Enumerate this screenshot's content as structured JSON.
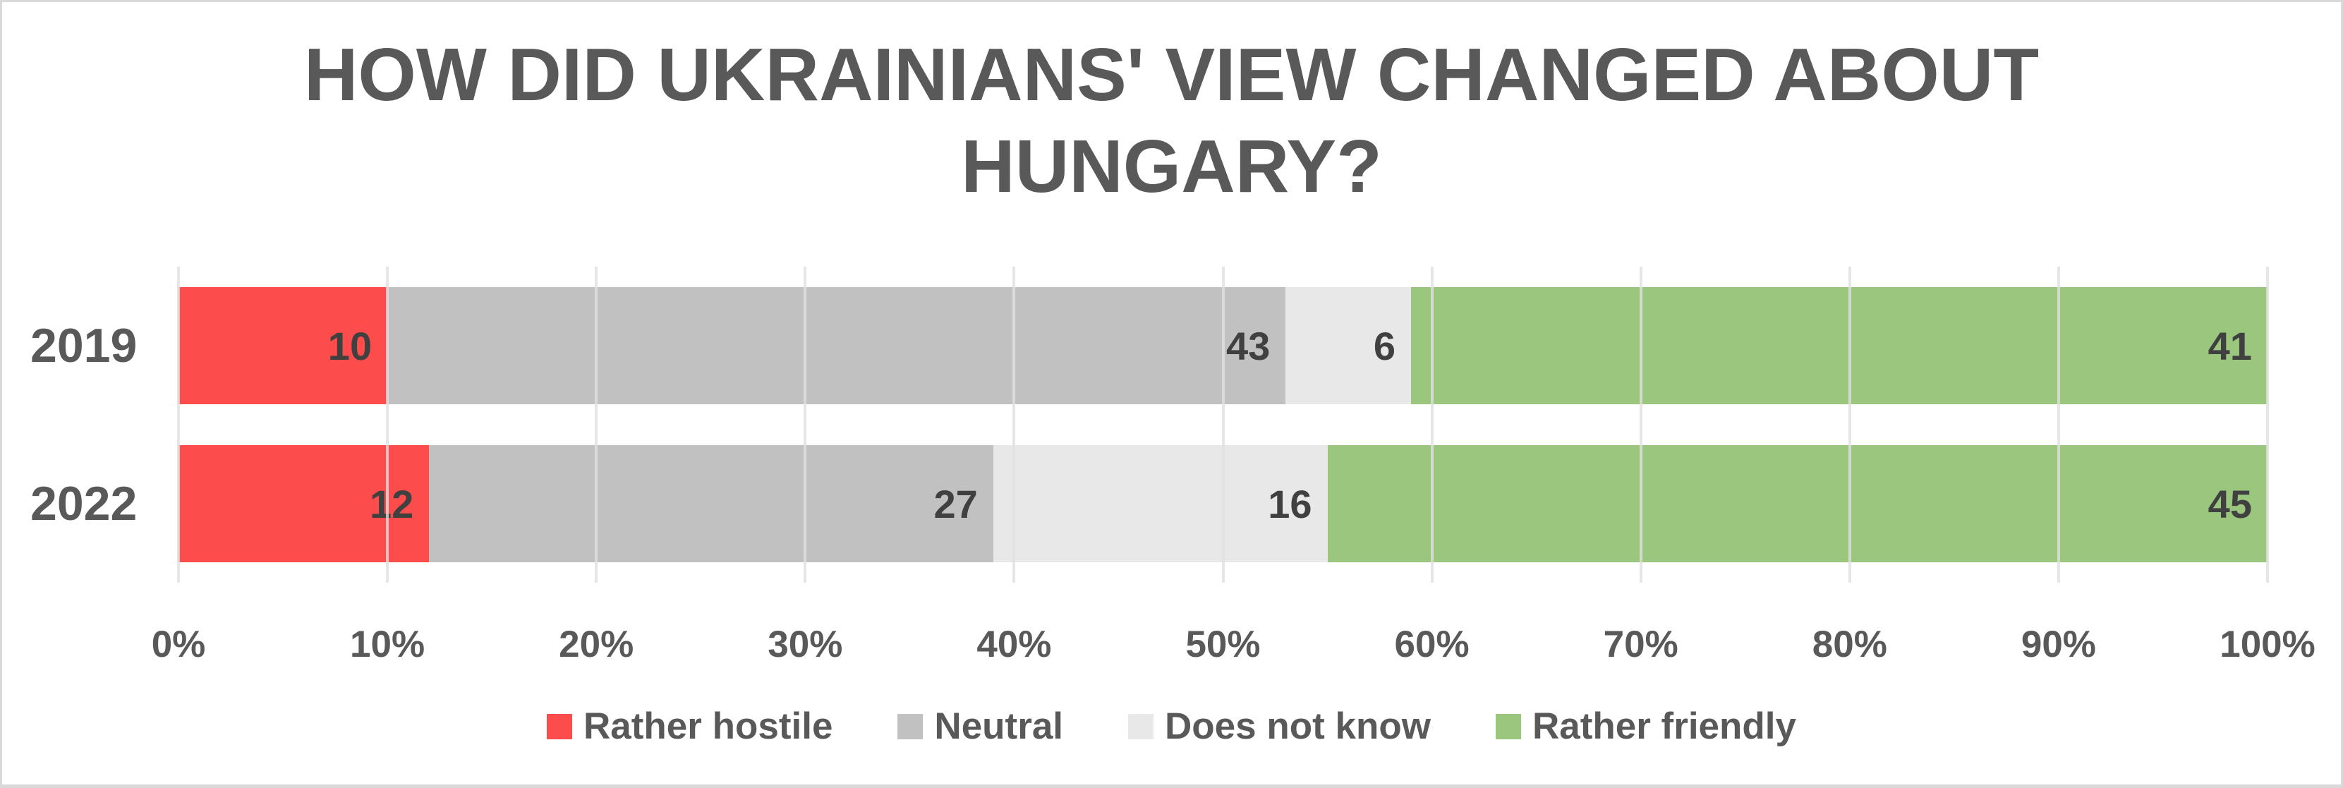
{
  "title": {
    "line1": "HOW DID UKRAINIANS' VIEW CHANGED ABOUT",
    "line2": "HUNGARY?",
    "full": "HOW DID UKRAINIANS' VIEW CHANGED ABOUT HUNGARY?",
    "color": "#595959"
  },
  "chart_data": {
    "type": "bar",
    "orientation": "horizontal",
    "stacked": true,
    "stacked_total": 100,
    "title": "HOW DID UKRAINIANS' VIEW CHANGED ABOUT HUNGARY?",
    "categories": [
      "2019",
      "2022"
    ],
    "series": [
      {
        "name": "Rather hostile",
        "color": "#fd4c4c",
        "values": [
          10,
          12
        ]
      },
      {
        "name": "Neutral",
        "color": "#c1c1c1",
        "values": [
          43,
          27
        ]
      },
      {
        "name": "Does not know",
        "color": "#e8e8e8",
        "values": [
          6,
          16
        ]
      },
      {
        "name": "Rather friendly",
        "color": "#9ac67d",
        "values": [
          41,
          45
        ]
      }
    ],
    "x_axis": {
      "min": 0,
      "max": 100,
      "tick_step": 10,
      "ticks": [
        "0%",
        "10%",
        "20%",
        "30%",
        "40%",
        "50%",
        "60%",
        "70%",
        "80%",
        "90%",
        "100%"
      ]
    },
    "data_labels": "inside-end",
    "grid": true,
    "legend_position": "bottom"
  },
  "style_colors": {
    "text_primary": "#595959",
    "data_label": "#404040",
    "gridline": "#e0e0e0",
    "frame_border": "#d9d9d9",
    "background": "#ffffff"
  }
}
